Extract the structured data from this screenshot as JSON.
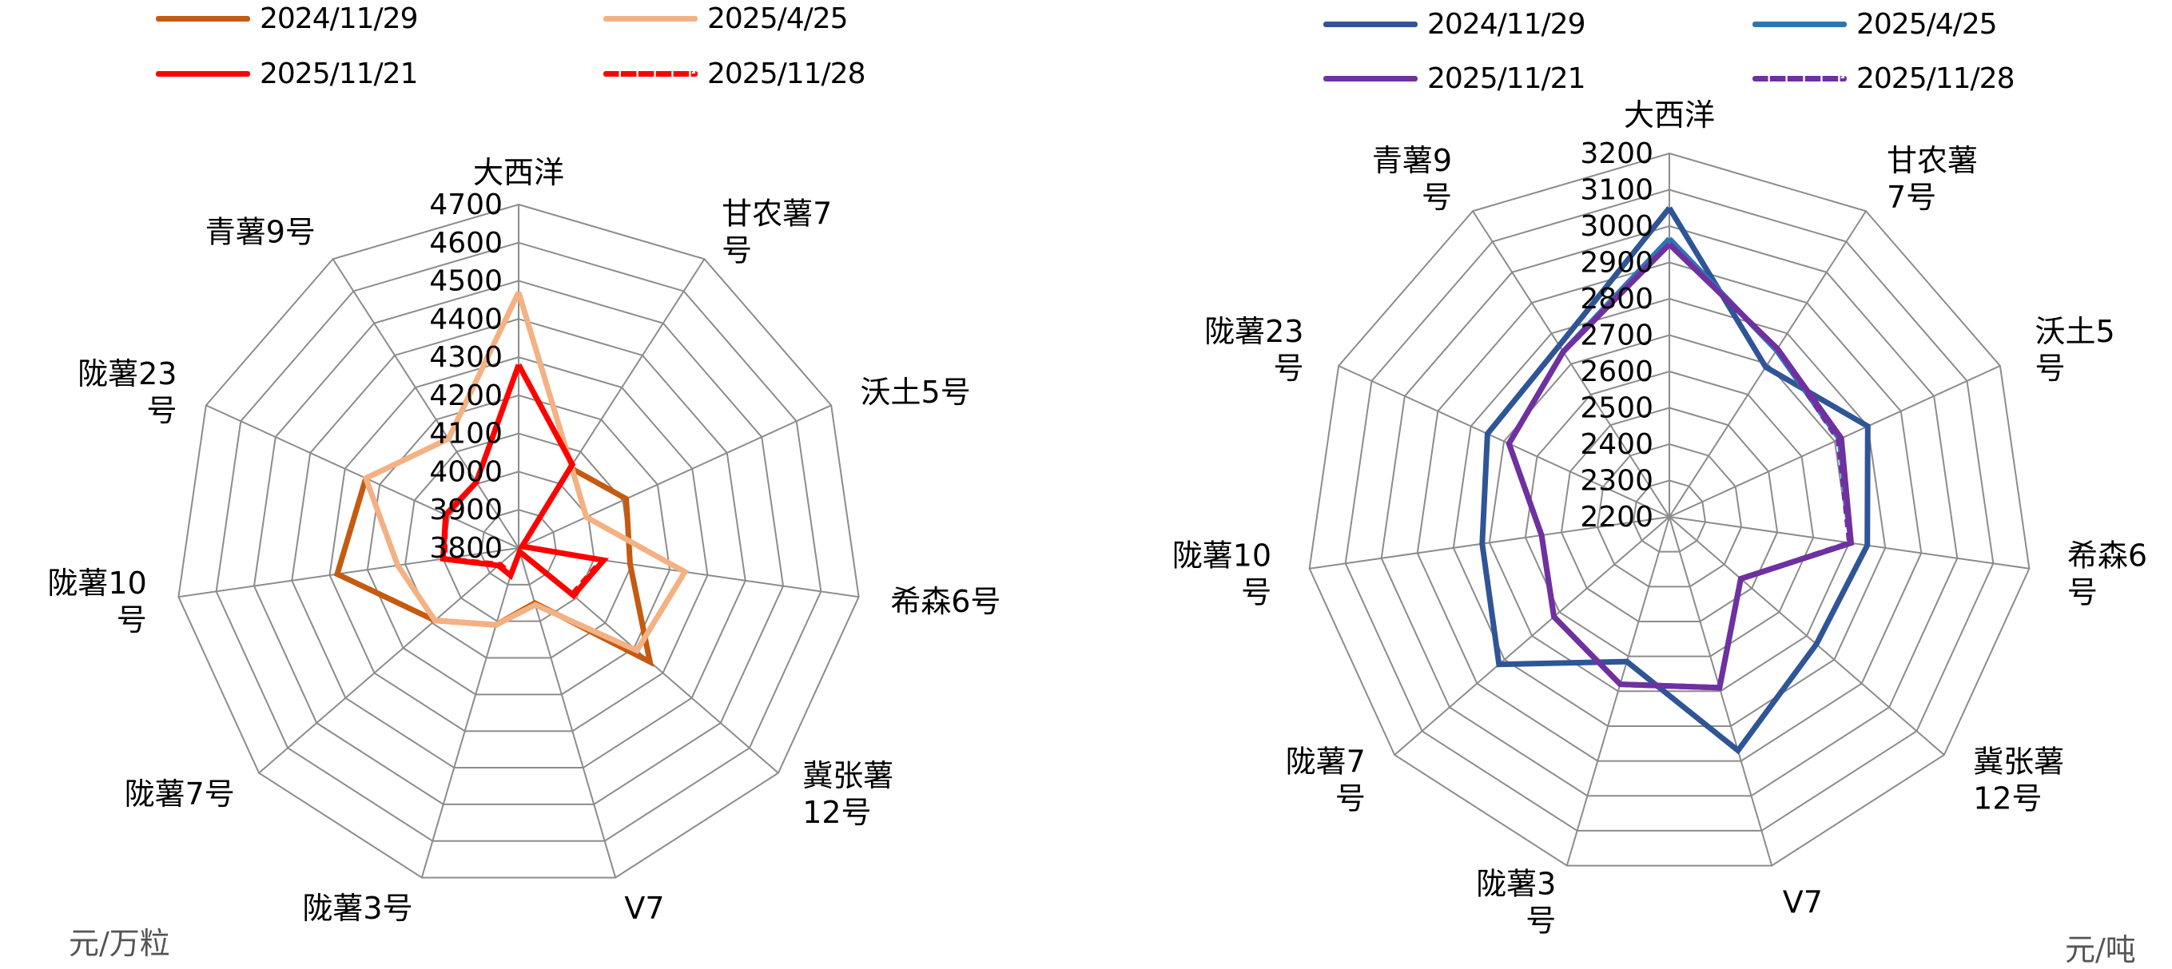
{
  "chart_data": [
    {
      "type": "radar",
      "title": "",
      "unit": "元/万粒",
      "categories": [
        "大西洋",
        "甘农薯7号",
        "沃土5号",
        "希森6号",
        "冀张薯12号",
        "V7",
        "陇薯3号",
        "陇薯7号",
        "陇薯10号",
        "陇薯23号",
        "青薯9号"
      ],
      "category_labels": [
        [
          "大西洋"
        ],
        [
          "甘农薯7",
          "号"
        ],
        [
          "沃土5号"
        ],
        [
          "希森6号"
        ],
        [
          "冀张薯",
          "12号"
        ],
        [
          "V7"
        ],
        [
          "陇薯3号"
        ],
        [
          "陇薯7号"
        ],
        [
          "陇薯10",
          "号"
        ],
        [
          "陇薯23",
          "号"
        ],
        [
          "青薯9号"
        ]
      ],
      "rlim": [
        3800,
        4700
      ],
      "rticks": [
        3800,
        3900,
        4000,
        4100,
        4200,
        4300,
        4400,
        4500,
        4600,
        4700
      ],
      "grid": true,
      "legend_position": "top",
      "series": [
        {
          "name": "2024/11/29",
          "color": "#C55A11",
          "dash": false,
          "values": [
            null,
            4050,
            4110,
            4095,
            4255,
            3950,
            4010,
            4090,
            4280,
            4240,
            null
          ]
        },
        {
          "name": "2025/4/25",
          "color": "#F4B183",
          "dash": false,
          "values": [
            4470,
            4055,
            3995,
            4240,
            4210,
            3955,
            4010,
            4090,
            4120,
            4240,
            4140
          ]
        },
        {
          "name": "2025/11/21",
          "color": "#FF0000",
          "dash": false,
          "values": [
            4280,
            4060,
            3810,
            4025,
            3990,
            3810,
            3875,
            3870,
            4000,
            4010,
            4005
          ]
        },
        {
          "name": "2025/11/28",
          "color": "#FF0000",
          "dash": true,
          "values": [
            4280,
            4060,
            3810,
            4020,
            3985,
            3810,
            3870,
            3865,
            3995,
            4010,
            4005
          ]
        }
      ]
    },
    {
      "type": "radar",
      "title": "",
      "unit": "元/吨",
      "categories": [
        "大西洋",
        "甘农薯7号",
        "沃土5号",
        "希森6号",
        "冀张薯12号",
        "V7",
        "陇薯3号",
        "陇薯7号",
        "陇薯10号",
        "陇薯23号",
        "青薯9号"
      ],
      "category_labels": [
        [
          "大西洋"
        ],
        [
          "甘农薯",
          "7号"
        ],
        [
          "沃土5",
          "号"
        ],
        [
          "希森6",
          "号"
        ],
        [
          "冀张薯",
          "12号"
        ],
        [
          "V7"
        ],
        [
          "陇薯3",
          "号"
        ],
        [
          "陇薯7",
          "号"
        ],
        [
          "陇薯10",
          "号"
        ],
        [
          "陇薯23",
          "号"
        ],
        [
          "青薯9",
          "号"
        ]
      ],
      "rlim": [
        2200,
        3200
      ],
      "rticks": [
        2200,
        2300,
        2400,
        2500,
        2600,
        2700,
        2800,
        2900,
        3000,
        3100,
        3200
      ],
      "grid": true,
      "legend_position": "top",
      "series": [
        {
          "name": "2024/11/29",
          "color": "#2F5597",
          "dash": false,
          "values": [
            3050,
            2690,
            2800,
            2750,
            2735,
            2870,
            2615,
            2820,
            2720,
            2750,
            2760
          ]
        },
        {
          "name": "2025/4/25",
          "color": "#2E75B6",
          "dash": false,
          "values": [
            2965,
            2745,
            2715,
            2705,
            2460,
            2690,
            2680,
            2620,
            2555,
            2685,
            2740
          ]
        },
        {
          "name": "2025/11/21",
          "color": "#7030A0",
          "dash": false,
          "values": [
            2950,
            2750,
            2720,
            2705,
            2460,
            2690,
            2680,
            2620,
            2555,
            2685,
            2740
          ]
        },
        {
          "name": "2025/11/28",
          "color": "#7030A0",
          "dash": true,
          "values": [
            2950,
            2750,
            2710,
            2700,
            2460,
            2690,
            2680,
            2620,
            2555,
            2685,
            2740
          ]
        }
      ]
    }
  ],
  "left_panel": {
    "legend": [
      {
        "label": "2024/11/29"
      },
      {
        "label": "2025/4/25"
      },
      {
        "label": "2025/11/21"
      },
      {
        "label": "2025/11/28"
      }
    ],
    "unit_label": "元/万粒"
  },
  "right_panel": {
    "legend": [
      {
        "label": "2024/11/29"
      },
      {
        "label": "2025/4/25"
      },
      {
        "label": "2025/11/21"
      },
      {
        "label": "2025/11/28"
      }
    ],
    "unit_label": "元/吨"
  }
}
